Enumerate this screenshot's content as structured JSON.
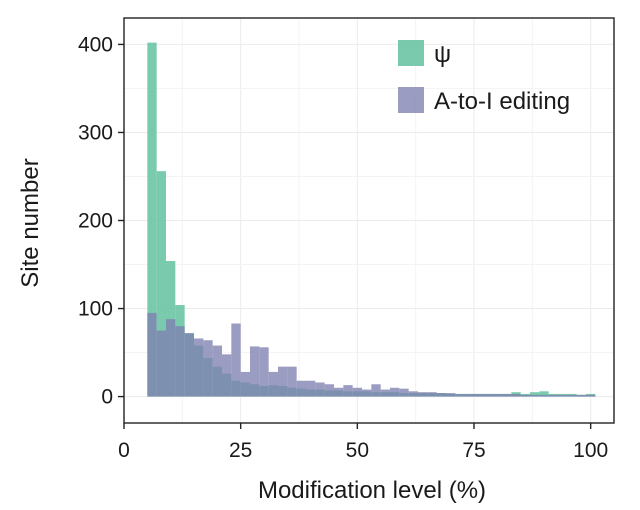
{
  "chart_data": {
    "type": "bar",
    "subtype": "overlapping-histogram",
    "xlabel": "Modification level (%)",
    "ylabel": "Site number",
    "xlim": [
      0,
      105
    ],
    "ylim": [
      -30,
      430
    ],
    "xticks": [
      0,
      25,
      50,
      75,
      100
    ],
    "yticks": [
      0,
      100,
      200,
      300,
      400
    ],
    "grid": true,
    "legend_position": "top-right",
    "bin_width": 2,
    "bin_start": 5,
    "series": [
      {
        "name": "ψ",
        "color": "#6cc4a4",
        "values": [
          402,
          256,
          154,
          104,
          72,
          58,
          44,
          34,
          26,
          18,
          16,
          14,
          12,
          13,
          12,
          10,
          9,
          8,
          8,
          7,
          7,
          6,
          6,
          6,
          5,
          5,
          5,
          4,
          4,
          4,
          4,
          4,
          3,
          3,
          3,
          3,
          3,
          3,
          3,
          5,
          3,
          5,
          6,
          3,
          3,
          3,
          2,
          3
        ]
      },
      {
        "name": "A-to-I editing",
        "color": "#7f80b0",
        "values": [
          95,
          75,
          88,
          80,
          72,
          66,
          64,
          58,
          48,
          83,
          28,
          57,
          56,
          28,
          34,
          34,
          18,
          18,
          16,
          14,
          10,
          13,
          10,
          8,
          14,
          8,
          10,
          9,
          6,
          5,
          5,
          4,
          4,
          3,
          3,
          3,
          3,
          3,
          3,
          3,
          2,
          2,
          2,
          2,
          2,
          2,
          2,
          2
        ]
      }
    ]
  }
}
